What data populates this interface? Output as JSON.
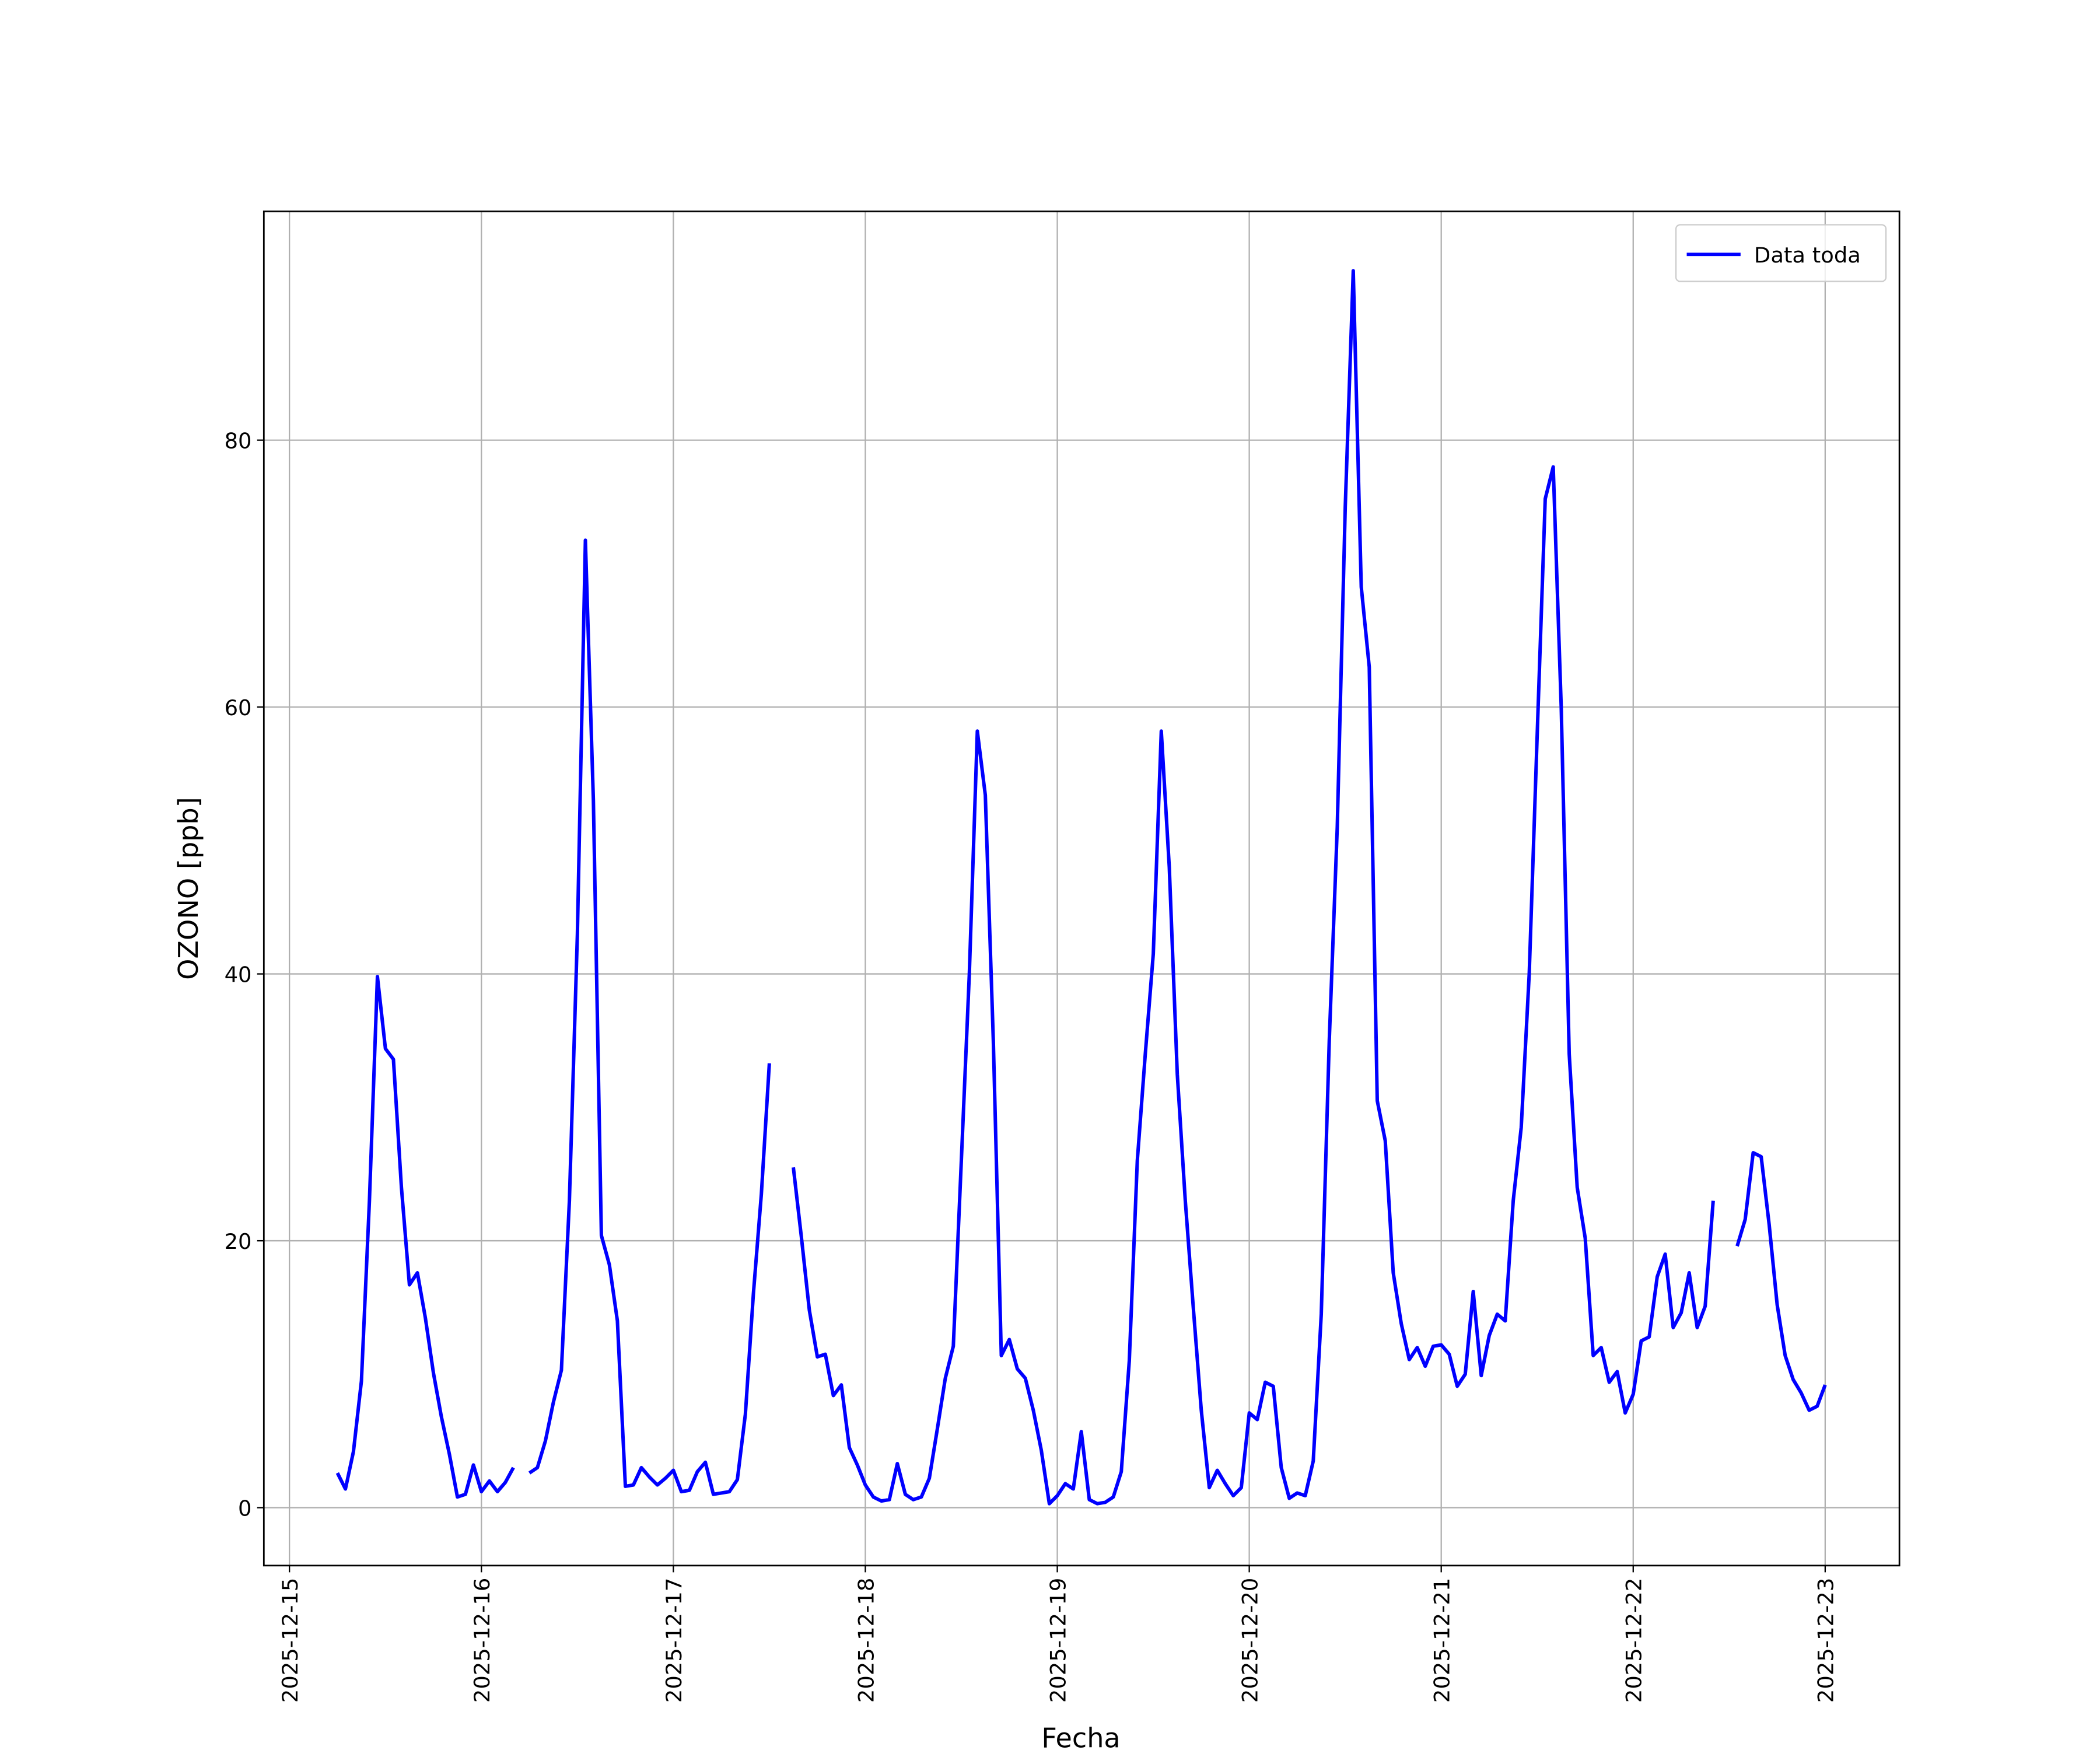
{
  "chart_data": {
    "type": "line",
    "xlabel": "Fecha",
    "ylabel": "OZONO [ppb]",
    "x": [
      "2025-12-15 06:00",
      "2025-12-15 07:00",
      "2025-12-15 08:00",
      "2025-12-15 09:00",
      "2025-12-15 10:00",
      "2025-12-15 11:00",
      "2025-12-15 12:00",
      "2025-12-15 13:00",
      "2025-12-15 14:00",
      "2025-12-15 15:00",
      "2025-12-15 16:00",
      "2025-12-15 17:00",
      "2025-12-15 18:00",
      "2025-12-15 19:00",
      "2025-12-15 20:00",
      "2025-12-15 21:00",
      "2025-12-15 22:00",
      "2025-12-15 23:00",
      "2025-12-16 00:00",
      "2025-12-16 01:00",
      "2025-12-16 02:00",
      "2025-12-16 03:00",
      "2025-12-16 04:00",
      "2025-12-16 05:00",
      "2025-12-16 06:00",
      "2025-12-16 07:00",
      "2025-12-16 08:00",
      "2025-12-16 09:00",
      "2025-12-16 10:00",
      "2025-12-16 11:00",
      "2025-12-16 12:00",
      "2025-12-16 13:00",
      "2025-12-16 14:00",
      "2025-12-16 15:00",
      "2025-12-16 16:00",
      "2025-12-16 17:00",
      "2025-12-16 18:00",
      "2025-12-16 19:00",
      "2025-12-16 20:00",
      "2025-12-16 21:00",
      "2025-12-16 22:00",
      "2025-12-16 23:00",
      "2025-12-17 00:00",
      "2025-12-17 01:00",
      "2025-12-17 02:00",
      "2025-12-17 03:00",
      "2025-12-17 04:00",
      "2025-12-17 05:00",
      "2025-12-17 06:00",
      "2025-12-17 07:00",
      "2025-12-17 08:00",
      "2025-12-17 09:00",
      "2025-12-17 10:00",
      "2025-12-17 11:00",
      "2025-12-17 12:00",
      "2025-12-17 13:00",
      "2025-12-17 14:00",
      "2025-12-17 15:00",
      "2025-12-17 16:00",
      "2025-12-17 17:00",
      "2025-12-17 18:00",
      "2025-12-17 19:00",
      "2025-12-17 20:00",
      "2025-12-17 21:00",
      "2025-12-17 22:00",
      "2025-12-17 23:00",
      "2025-12-18 00:00",
      "2025-12-18 01:00",
      "2025-12-18 02:00",
      "2025-12-18 03:00",
      "2025-12-18 04:00",
      "2025-12-18 05:00",
      "2025-12-18 06:00",
      "2025-12-18 07:00",
      "2025-12-18 08:00",
      "2025-12-18 09:00",
      "2025-12-18 10:00",
      "2025-12-18 11:00",
      "2025-12-18 12:00",
      "2025-12-18 13:00",
      "2025-12-18 14:00",
      "2025-12-18 15:00",
      "2025-12-18 16:00",
      "2025-12-18 17:00",
      "2025-12-18 18:00",
      "2025-12-18 19:00",
      "2025-12-18 20:00",
      "2025-12-18 21:00",
      "2025-12-18 22:00",
      "2025-12-18 23:00",
      "2025-12-19 00:00",
      "2025-12-19 01:00",
      "2025-12-19 02:00",
      "2025-12-19 03:00",
      "2025-12-19 04:00",
      "2025-12-19 05:00",
      "2025-12-19 06:00",
      "2025-12-19 07:00",
      "2025-12-19 08:00",
      "2025-12-19 09:00",
      "2025-12-19 10:00",
      "2025-12-19 11:00",
      "2025-12-19 12:00",
      "2025-12-19 13:00",
      "2025-12-19 14:00",
      "2025-12-19 15:00",
      "2025-12-19 16:00",
      "2025-12-19 17:00",
      "2025-12-19 18:00",
      "2025-12-19 19:00",
      "2025-12-19 20:00",
      "2025-12-19 21:00",
      "2025-12-19 22:00",
      "2025-12-19 23:00",
      "2025-12-20 00:00",
      "2025-12-20 01:00",
      "2025-12-20 02:00",
      "2025-12-20 03:00",
      "2025-12-20 04:00",
      "2025-12-20 05:00",
      "2025-12-20 06:00",
      "2025-12-20 07:00",
      "2025-12-20 08:00",
      "2025-12-20 09:00",
      "2025-12-20 10:00",
      "2025-12-20 11:00",
      "2025-12-20 12:00",
      "2025-12-20 13:00",
      "2025-12-20 14:00",
      "2025-12-20 15:00",
      "2025-12-20 16:00",
      "2025-12-20 17:00",
      "2025-12-20 18:00",
      "2025-12-20 19:00",
      "2025-12-20 20:00",
      "2025-12-20 21:00",
      "2025-12-20 22:00",
      "2025-12-20 23:00",
      "2025-12-21 00:00",
      "2025-12-21 01:00",
      "2025-12-21 02:00",
      "2025-12-21 03:00",
      "2025-12-21 04:00",
      "2025-12-21 05:00",
      "2025-12-21 06:00",
      "2025-12-21 07:00",
      "2025-12-21 08:00",
      "2025-12-21 09:00",
      "2025-12-21 10:00",
      "2025-12-21 11:00",
      "2025-12-21 12:00",
      "2025-12-21 13:00",
      "2025-12-21 14:00",
      "2025-12-21 15:00",
      "2025-12-21 16:00",
      "2025-12-21 17:00",
      "2025-12-21 18:00",
      "2025-12-21 19:00",
      "2025-12-21 20:00",
      "2025-12-21 21:00",
      "2025-12-21 22:00",
      "2025-12-21 23:00",
      "2025-12-22 00:00",
      "2025-12-22 01:00",
      "2025-12-22 02:00",
      "2025-12-22 03:00",
      "2025-12-22 04:00",
      "2025-12-22 05:00",
      "2025-12-22 06:00",
      "2025-12-22 07:00",
      "2025-12-22 08:00",
      "2025-12-22 09:00",
      "2025-12-22 10:00",
      "2025-12-22 11:00",
      "2025-12-22 12:00",
      "2025-12-22 13:00",
      "2025-12-22 14:00",
      "2025-12-22 15:00",
      "2025-12-22 16:00",
      "2025-12-22 17:00",
      "2025-12-22 18:00",
      "2025-12-22 19:00",
      "2025-12-22 20:00",
      "2025-12-22 21:00",
      "2025-12-22 22:00",
      "2025-12-22 23:00",
      "2025-12-23 00:00"
    ],
    "series": [
      {
        "name": "Data toda",
        "color": "#0000ff",
        "values": [
          2.6,
          1.4,
          4.2,
          9.5,
          23,
          39.8,
          34.4,
          33.6,
          24,
          16.7,
          17.6,
          14.2,
          10.1,
          6.8,
          4,
          0.8,
          1,
          3.2,
          1.2,
          2,
          1.2,
          1.9,
          3,
          null,
          2.6,
          3,
          5,
          7.9,
          10.3,
          23,
          43,
          72.5,
          53,
          20.4,
          18.2,
          14,
          1.6,
          1.7,
          3,
          2.3,
          1.7,
          2.2,
          2.8,
          1.2,
          1.3,
          2.7,
          3.4,
          1,
          1.1,
          1.2,
          2.1,
          7,
          16,
          23.5,
          33.3,
          null,
          null,
          25.5,
          20.3,
          14.8,
          11.3,
          11.5,
          8.4,
          9.2,
          4.5,
          3.2,
          1.7,
          0.8,
          0.5,
          0.6,
          3.3,
          1,
          0.6,
          0.8,
          2.2,
          5.9,
          9.7,
          12.1,
          26,
          40,
          58.2,
          53.4,
          35,
          11.4,
          12.6,
          10.4,
          9.7,
          7.3,
          4.3,
          0.3,
          0.9,
          1.8,
          1.4,
          5.7,
          0.6,
          0.3,
          0.4,
          0.8,
          2.7,
          11,
          26,
          34,
          41.5,
          58.2,
          48,
          32.5,
          23,
          15,
          7.3,
          1.5,
          2.8,
          1.8,
          0.9,
          1.5,
          7.1,
          6.6,
          9.4,
          9.1,
          3,
          0.7,
          1.1,
          0.9,
          3.5,
          14.5,
          35,
          51,
          75,
          92.7,
          69,
          63,
          30.5,
          27.5,
          17.6,
          13.8,
          11.1,
          12,
          10.6,
          12.1,
          12.2,
          11.5,
          9.1,
          10,
          16.2,
          9.9,
          12.9,
          14.5,
          14,
          23,
          28.5,
          40,
          58,
          75.6,
          78,
          60,
          34,
          24,
          20.2,
          11.4,
          12,
          9.4,
          10.2,
          7.1,
          8.5,
          12.5,
          12.8,
          17.3,
          19,
          13.5,
          14.6,
          17.6,
          13.5,
          15.1,
          23,
          null,
          null,
          19.6,
          21.6,
          26.6,
          26.3,
          21.2,
          15.2,
          11.4,
          9.6,
          8.6,
          7.3,
          7.6,
          9.2
        ]
      }
    ],
    "xlim": [
      "2025-12-14 20:48",
      "2025-12-23 09:17"
    ],
    "xticks": [
      "2025-12-15",
      "2025-12-16",
      "2025-12-17",
      "2025-12-18",
      "2025-12-19",
      "2025-12-20",
      "2025-12-21",
      "2025-12-22",
      "2025-12-23"
    ],
    "ylim": [
      -4.34,
      97.15
    ],
    "yticks": [
      0,
      20,
      40,
      60,
      80
    ],
    "grid": true,
    "legend": "upper right"
  }
}
